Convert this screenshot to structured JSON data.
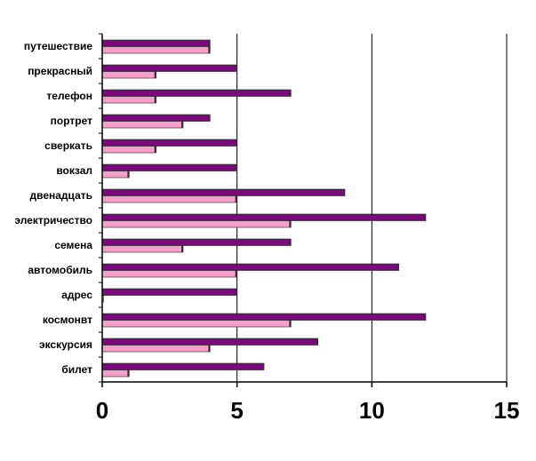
{
  "chart_data": {
    "type": "bar",
    "orientation": "horizontal",
    "categories": [
      "путешествие",
      "прекрасный",
      "телефон",
      "портрет",
      "сверкать",
      "вокзал",
      "двенадцать",
      "электричество",
      "семена",
      "автомобиль",
      "адрес",
      "космонвт",
      "экскурсия",
      "билет"
    ],
    "series": [
      {
        "values": [
          4,
          5,
          7,
          4,
          5,
          5,
          9,
          12,
          7,
          11,
          5,
          12,
          8,
          6
        ],
        "color": "#7a0a7a"
      },
      {
        "values": [
          4,
          2,
          2,
          3,
          2,
          1,
          5,
          7,
          3,
          5,
          0,
          7,
          4,
          1
        ],
        "color": "#f4a0c8"
      }
    ],
    "xlim": [
      0,
      15
    ],
    "xticks": [
      0,
      5,
      10,
      15
    ],
    "xtick_labels": [
      "0",
      "5",
      "10",
      "15"
    ],
    "vertical_gridlines": true,
    "legend": false
  }
}
